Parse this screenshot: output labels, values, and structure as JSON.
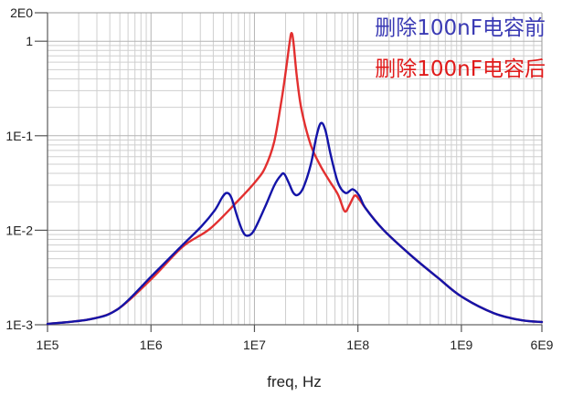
{
  "chart_data": {
    "type": "line",
    "title": "",
    "xlabel": "freq, Hz",
    "ylabel": "",
    "xscale": "log",
    "yscale": "log",
    "xlim": [
      100000,
      6000000000
    ],
    "ylim": [
      0.001,
      2
    ],
    "grid": true,
    "legend_position": "top-right",
    "x_ticks": [
      {
        "value": 100000,
        "label": "1E5"
      },
      {
        "value": 1000000,
        "label": "1E6"
      },
      {
        "value": 10000000,
        "label": "1E7"
      },
      {
        "value": 100000000,
        "label": "1E8"
      },
      {
        "value": 1000000000,
        "label": "1E9"
      },
      {
        "value": 6000000000,
        "label": "6E9"
      }
    ],
    "y_ticks": [
      {
        "value": 0.001,
        "label": "1E-3"
      },
      {
        "value": 0.01,
        "label": "1E-2"
      },
      {
        "value": 0.1,
        "label": "1E-1"
      },
      {
        "value": 1,
        "label": "1"
      },
      {
        "value": 2,
        "label": "2E0"
      }
    ],
    "series": [
      {
        "name": "删除100nF电容后",
        "color": "#e01a1a",
        "x": [
          100000.0,
          265000.0,
          489000.0,
          1020000.0,
          2030000.0,
          3730000.0,
          6870000.0,
          10300000.0,
          12700000.0,
          15500000.0,
          18200000.0,
          20200000.0,
          21900000.0,
          22800000.0,
          23800000.0,
          25800000.0,
          28600000.0,
          35000000.0,
          42900000.0,
          52600000.0,
          64400000.0,
          74300000.0,
          82300000.0,
          92900000.0,
          103000000.0,
          119000000.0,
          178000000.0,
          328000000.0,
          604000000.0,
          1000000000.0,
          2050000000.0,
          3770000000.0,
          6000000000.0
        ],
        "y": [
          0.00102,
          0.00115,
          0.00149,
          0.00309,
          0.00671,
          0.0104,
          0.0203,
          0.033,
          0.0461,
          0.0857,
          0.232,
          0.503,
          0.978,
          1.22,
          0.978,
          0.403,
          0.186,
          0.0801,
          0.0492,
          0.0338,
          0.0237,
          0.0159,
          0.0182,
          0.0232,
          0.0212,
          0.017,
          0.01,
          0.00538,
          0.00309,
          0.00199,
          0.00133,
          0.00112,
          0.00107
        ]
      },
      {
        "name": "删除100nF电容前",
        "color": "#1414a8",
        "x": [
          100000.0,
          265000.0,
          489000.0,
          1020000.0,
          2030000.0,
          3050000.0,
          4140000.0,
          4870000.0,
          5390000.0,
          5970000.0,
          6870000.0,
          7760000.0,
          8600000.0,
          9920000.0,
          12700000.0,
          15500000.0,
          17900000.0,
          19400000.0,
          21500000.0,
          23800000.0,
          26300000.0,
          29700000.0,
          35000000.0,
          39500000.0,
          43800000.0,
          48500000.0,
          54800000.0,
          64400000.0,
          75900000.0,
          89300000.0,
          103000000.0,
          119000000.0,
          178000000.0,
          328000000.0,
          604000000.0,
          1000000000.0,
          2050000000.0,
          3770000000.0,
          6000000000.0
        ],
        "y": [
          0.00102,
          0.00115,
          0.00149,
          0.0033,
          0.00702,
          0.0109,
          0.0163,
          0.0222,
          0.0248,
          0.0222,
          0.0136,
          0.00957,
          0.00875,
          0.01,
          0.0178,
          0.0296,
          0.0378,
          0.0395,
          0.0316,
          0.0248,
          0.0237,
          0.0283,
          0.0492,
          0.0957,
          0.136,
          0.114,
          0.0614,
          0.0316,
          0.0248,
          0.0271,
          0.0232,
          0.017,
          0.01,
          0.00538,
          0.00309,
          0.00199,
          0.00133,
          0.00112,
          0.00107
        ]
      }
    ],
    "legend": [
      {
        "label": "删除100nF电容前",
        "color": "#3a3ab4"
      },
      {
        "label": "删除100nF电容后",
        "color": "#e01a1a"
      }
    ]
  }
}
